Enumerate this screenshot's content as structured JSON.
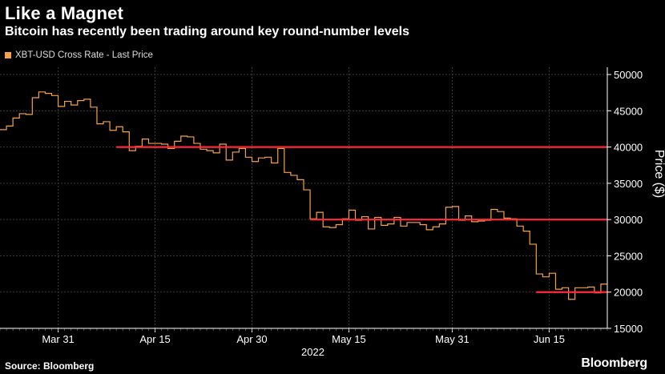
{
  "header": {
    "title": "Like a Magnet",
    "subtitle": "Bitcoin has recently been trading around key round-number levels"
  },
  "legend": {
    "label": "XBT-USD Cross Rate - Last Price",
    "color": "#f5a14a"
  },
  "footer": {
    "source": "Source: Bloomberg",
    "logo": "Bloomberg"
  },
  "colors": {
    "price_line": "#f5a14a",
    "reference_line": "#ff2a3a",
    "grid": "#3a3a3a",
    "background": "#000000"
  },
  "chart_data": {
    "type": "line",
    "title": "Like a Magnet",
    "subtitle": "Bitcoin has recently been trading around key round-number levels",
    "ylabel": "Price ($)",
    "xlabel": "2022",
    "y_axis_position": "right",
    "ylim": [
      15000,
      51000
    ],
    "yticks": [
      15000,
      20000,
      25000,
      30000,
      35000,
      40000,
      45000,
      50000
    ],
    "x_range": [
      "2022-03-22",
      "2022-06-24"
    ],
    "xticks": [
      {
        "date": "2022-03-31",
        "label": "Mar 31"
      },
      {
        "date": "2022-04-15",
        "label": "Apr 15"
      },
      {
        "date": "2022-04-30",
        "label": "Apr 30"
      },
      {
        "date": "2022-05-15",
        "label": "May 15"
      },
      {
        "date": "2022-05-31",
        "label": "May 31"
      },
      {
        "date": "2022-06-15",
        "label": "Jun 15"
      }
    ],
    "grid": true,
    "legend_position": "top-left",
    "series": [
      {
        "name": "XBT-USD Cross Rate - Last Price",
        "style": "step",
        "x": [
          "2022-03-22",
          "2022-03-23",
          "2022-03-24",
          "2022-03-25",
          "2022-03-26",
          "2022-03-27",
          "2022-03-28",
          "2022-03-29",
          "2022-03-30",
          "2022-03-31",
          "2022-04-01",
          "2022-04-02",
          "2022-04-03",
          "2022-04-04",
          "2022-04-05",
          "2022-04-06",
          "2022-04-07",
          "2022-04-08",
          "2022-04-09",
          "2022-04-10",
          "2022-04-11",
          "2022-04-12",
          "2022-04-13",
          "2022-04-14",
          "2022-04-15",
          "2022-04-16",
          "2022-04-17",
          "2022-04-18",
          "2022-04-19",
          "2022-04-20",
          "2022-04-21",
          "2022-04-22",
          "2022-04-23",
          "2022-04-24",
          "2022-04-25",
          "2022-04-26",
          "2022-04-27",
          "2022-04-28",
          "2022-04-29",
          "2022-04-30",
          "2022-05-01",
          "2022-05-02",
          "2022-05-03",
          "2022-05-04",
          "2022-05-05",
          "2022-05-06",
          "2022-05-07",
          "2022-05-08",
          "2022-05-09",
          "2022-05-10",
          "2022-05-11",
          "2022-05-12",
          "2022-05-13",
          "2022-05-14",
          "2022-05-15",
          "2022-05-16",
          "2022-05-17",
          "2022-05-18",
          "2022-05-19",
          "2022-05-20",
          "2022-05-21",
          "2022-05-22",
          "2022-05-23",
          "2022-05-24",
          "2022-05-25",
          "2022-05-26",
          "2022-05-27",
          "2022-05-28",
          "2022-05-29",
          "2022-05-30",
          "2022-05-31",
          "2022-06-01",
          "2022-06-02",
          "2022-06-03",
          "2022-06-04",
          "2022-06-05",
          "2022-06-06",
          "2022-06-07",
          "2022-06-08",
          "2022-06-09",
          "2022-06-10",
          "2022-06-11",
          "2022-06-12",
          "2022-06-13",
          "2022-06-14",
          "2022-06-15",
          "2022-06-16",
          "2022-06-17",
          "2022-06-18",
          "2022-06-19",
          "2022-06-20",
          "2022-06-21",
          "2022-06-22",
          "2022-06-23"
        ],
        "y": [
          42400,
          42900,
          44000,
          44600,
          44500,
          46800,
          47600,
          47400,
          47100,
          45600,
          46300,
          45800,
          46400,
          46600,
          45500,
          43200,
          43500,
          42300,
          42800,
          42100,
          39500,
          40100,
          41100,
          40500,
          40500,
          40400,
          39800,
          40800,
          41500,
          41400,
          40500,
          39700,
          39500,
          39200,
          40400,
          38200,
          39300,
          39800,
          38600,
          38000,
          38500,
          38600,
          37800,
          39800,
          36500,
          36100,
          35500,
          34100,
          30100,
          31000,
          29000,
          28900,
          29300,
          30100,
          31300,
          29900,
          30400,
          28700,
          30300,
          29200,
          29400,
          30300,
          29100,
          29600,
          29600,
          29300,
          28600,
          29000,
          29400,
          31700,
          31800,
          29900,
          30500,
          29700,
          29800,
          29900,
          31400,
          31100,
          30200,
          30100,
          29100,
          28400,
          26600,
          22500,
          22100,
          22600,
          20400,
          20600,
          19000,
          20600,
          20600,
          20700,
          19900,
          21100
        ]
      }
    ],
    "reference_lines": [
      {
        "y": 40000,
        "x_start": "2022-04-09",
        "x_end": "2022-06-24"
      },
      {
        "y": 30000,
        "x_start": "2022-05-09",
        "x_end": "2022-06-24"
      },
      {
        "y": 20000,
        "x_start": "2022-06-13",
        "x_end": "2022-06-24"
      }
    ]
  }
}
